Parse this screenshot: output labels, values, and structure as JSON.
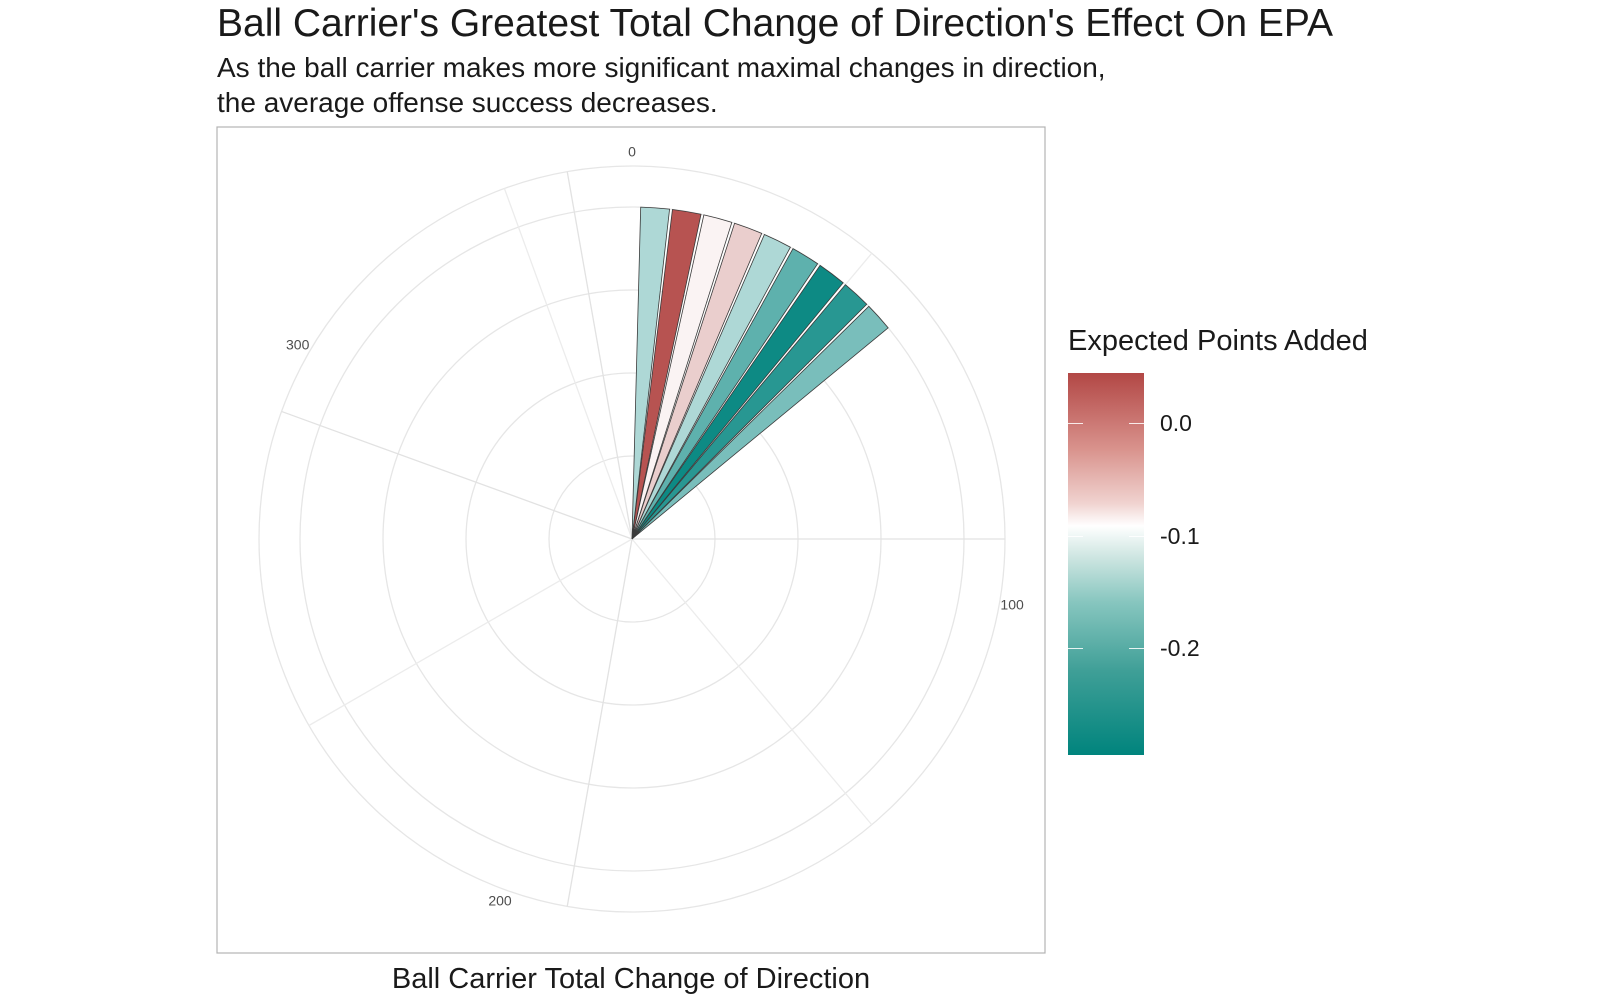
{
  "chart_data": {
    "type": "bar",
    "coord": "polar",
    "title": "Ball Carrier's Greatest Total Change of Direction's Effect On EPA",
    "subtitle_lines": [
      "As the ball carrier makes more significant maximal changes in direction,",
      "the average offense success decreases."
    ],
    "xlabel": "Ball Carrier Total Change of Direction",
    "ylabel": "",
    "angular_axis": {
      "range": [
        0,
        360
      ],
      "tick_labels": [
        "0",
        "100",
        "200",
        "300"
      ]
    },
    "radial_axis": {
      "rings": 4
    },
    "grid": true,
    "bars": [
      {
        "x_start": 1.5,
        "x_end": 6.5,
        "epa": -0.16
      },
      {
        "x_start": 7,
        "x_end": 12,
        "epa": 0.04
      },
      {
        "x_start": 12.5,
        "x_end": 17.5,
        "epa": -0.09
      },
      {
        "x_start": 18,
        "x_end": 23,
        "epa": -0.06
      },
      {
        "x_start": 23.5,
        "x_end": 28.5,
        "epa": -0.16
      },
      {
        "x_start": 29,
        "x_end": 34,
        "epa": -0.22
      },
      {
        "x_start": 34.5,
        "x_end": 39.5,
        "epa": -0.28
      },
      {
        "x_start": 40,
        "x_end": 45,
        "epa": -0.26
      },
      {
        "x_start": 45.5,
        "x_end": 50.5,
        "epa": -0.2
      }
    ],
    "legend": {
      "title": "Expected Points Added",
      "placement": "right",
      "labels": [
        "0.0",
        "-0.1",
        "-0.2"
      ],
      "colors": {
        "high": "#b24745",
        "mid": "#ffffff",
        "low": "#00847d"
      }
    }
  }
}
